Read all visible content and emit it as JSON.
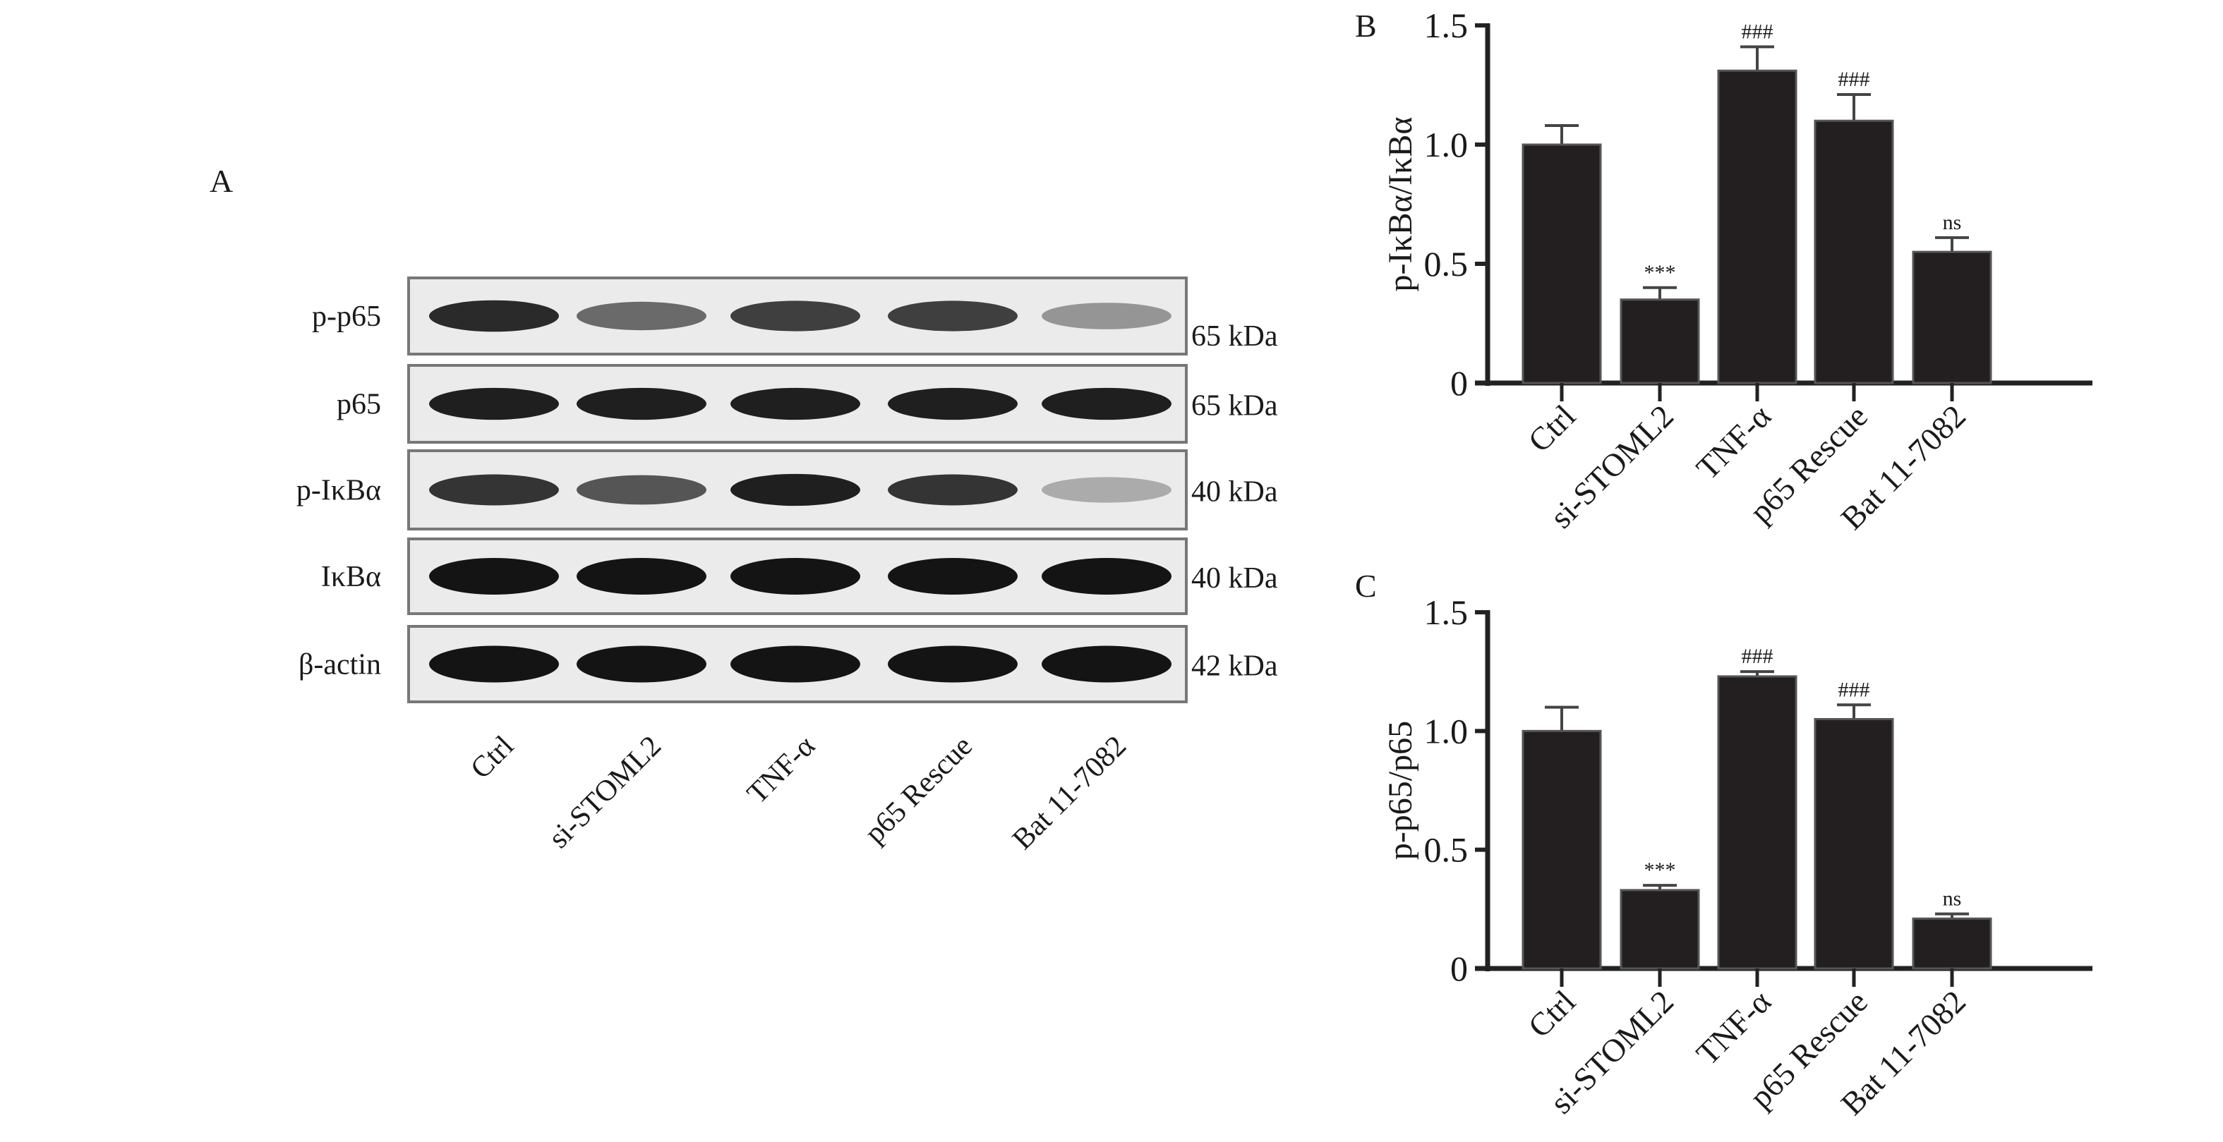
{
  "panel_labels": {
    "a": "A",
    "b": "B",
    "c": "C"
  },
  "blot": {
    "lanes": [
      "Ctrl",
      "si-STOML2",
      "TNF-α",
      "p65 Rescue",
      "Bat 11-7082"
    ],
    "rows": [
      {
        "label": "p-p65",
        "size": "65 kDa",
        "band_intensity": [
          0.9,
          0.6,
          0.8,
          0.8,
          0.4
        ]
      },
      {
        "label": "p65",
        "size": "65 kDa",
        "band_intensity": [
          0.95,
          0.95,
          0.95,
          0.95,
          0.95
        ]
      },
      {
        "label": "p-IκBα",
        "size": "40 kDa",
        "band_intensity": [
          0.85,
          0.7,
          0.95,
          0.85,
          0.3
        ]
      },
      {
        "label": "IκBα",
        "size": "40 kDa",
        "band_intensity": [
          1,
          1,
          1,
          1,
          1
        ]
      },
      {
        "label": "β-actin",
        "size": "42 kDa",
        "band_intensity": [
          1,
          1,
          1,
          1,
          1
        ]
      }
    ]
  },
  "chart_data": [
    {
      "type": "bar",
      "panel": "B",
      "ylabel": "p-IκBα/IκBα",
      "categories": [
        "Ctrl",
        "si-STOML2",
        "TNF-α",
        "p65 Rescue",
        "Bat 11-7082"
      ],
      "values": [
        1.0,
        0.35,
        1.31,
        1.1,
        0.55
      ],
      "errors": [
        0.08,
        0.05,
        0.1,
        0.11,
        0.06
      ],
      "annotations": [
        "",
        "***",
        "###",
        "###",
        "ns"
      ],
      "yticks": [
        "0",
        "0.5",
        "1.0",
        "1.5"
      ],
      "ylim": [
        0,
        1.5
      ]
    },
    {
      "type": "bar",
      "panel": "C",
      "ylabel": "p-p65/p65",
      "categories": [
        "Ctrl",
        "si-STOML2",
        "TNF-α",
        "p65 Rescue",
        "Bat 11-7082"
      ],
      "values": [
        1.0,
        0.33,
        1.23,
        1.05,
        0.21
      ],
      "errors": [
        0.1,
        0.02,
        0.02,
        0.06,
        0.02
      ],
      "annotations": [
        "",
        "***",
        "###",
        "###",
        "ns"
      ],
      "yticks": [
        "0",
        "0.5",
        "1.0",
        "1.5"
      ],
      "ylim": [
        0,
        1.5
      ]
    }
  ]
}
